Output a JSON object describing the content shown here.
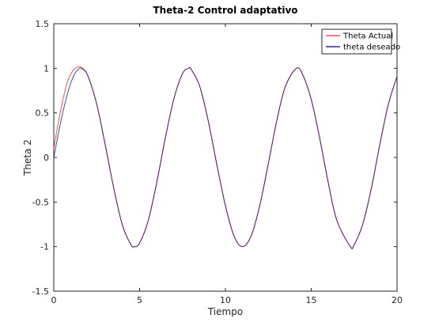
{
  "chart_data": {
    "type": "line",
    "title": "Theta-2 Control adaptativo",
    "xlabel": "Tiempo",
    "ylabel": "Theta 2",
    "xlim": [
      0,
      20
    ],
    "ylim": [
      -1.5,
      1.5
    ],
    "x_ticks": [
      0,
      5,
      10,
      15,
      20
    ],
    "x_tick_labels": [
      "0",
      "5",
      "10",
      "15",
      "20"
    ],
    "y_ticks": [
      -1.5,
      -1,
      -0.5,
      0,
      0.5,
      1,
      1.5
    ],
    "y_tick_labels": [
      "-1.5",
      "-1",
      "-0.5",
      "0",
      "0.5",
      "1",
      "1.5"
    ],
    "grid": false,
    "legend_position": "top-right",
    "series": [
      {
        "name": "Theta Actual",
        "color": "#ff3333",
        "x": [
          0,
          0.25,
          0.5,
          0.75,
          1,
          1.25,
          1.5,
          1.57,
          1.75,
          2,
          2.5,
          3,
          3.5,
          4,
          4.5,
          4.71,
          5,
          5.5,
          6,
          6.5,
          7,
          7.5,
          7.85,
          8,
          8.5,
          9,
          9.5,
          10,
          10.5,
          10.99,
          11.5,
          12,
          12.5,
          13,
          13.5,
          14.14,
          14.5,
          15,
          15.5,
          16,
          16.5,
          17.28,
          17.5,
          18,
          18.5,
          19,
          19.5,
          20
        ],
        "y": [
          0.1,
          0.38,
          0.62,
          0.82,
          0.94,
          1.0,
          1.02,
          1.01,
          0.99,
          0.91,
          0.6,
          0.14,
          -0.35,
          -0.76,
          -0.98,
          -1.0,
          -0.96,
          -0.71,
          -0.28,
          0.22,
          0.66,
          0.94,
          1.0,
          0.99,
          0.8,
          0.41,
          -0.08,
          -0.54,
          -0.88,
          -1.0,
          -0.88,
          -0.54,
          -0.07,
          0.42,
          0.8,
          1.0,
          0.93,
          0.65,
          0.21,
          -0.29,
          -0.71,
          -1.0,
          -0.98,
          -0.75,
          -0.35,
          0.15,
          0.6,
          0.91
        ]
      },
      {
        "name": "theta deseado",
        "color": "#00007a",
        "x": [
          0,
          0.25,
          0.5,
          0.75,
          1,
          1.25,
          1.5,
          1.57,
          1.75,
          2,
          2.5,
          3,
          3.5,
          4,
          4.5,
          4.71,
          5,
          5.5,
          6,
          6.5,
          7,
          7.5,
          7.85,
          8,
          8.5,
          9,
          9.5,
          10,
          10.5,
          10.99,
          11.5,
          12,
          12.5,
          13,
          13.5,
          14.14,
          14.5,
          15,
          15.5,
          16,
          16.5,
          17.28,
          17.5,
          18,
          18.5,
          19,
          19.5,
          20
        ],
        "y": [
          0,
          0.25,
          0.48,
          0.68,
          0.84,
          0.95,
          1.0,
          1.0,
          0.98,
          0.91,
          0.6,
          0.14,
          -0.35,
          -0.76,
          -0.98,
          -1.0,
          -0.96,
          -0.71,
          -0.28,
          0.22,
          0.66,
          0.94,
          1.0,
          0.99,
          0.8,
          0.41,
          -0.08,
          -0.54,
          -0.88,
          -1.0,
          -0.88,
          -0.54,
          -0.07,
          0.42,
          0.8,
          1.0,
          0.93,
          0.65,
          0.21,
          -0.29,
          -0.71,
          -1.0,
          -0.98,
          -0.75,
          -0.35,
          0.15,
          0.6,
          0.91
        ]
      }
    ]
  }
}
